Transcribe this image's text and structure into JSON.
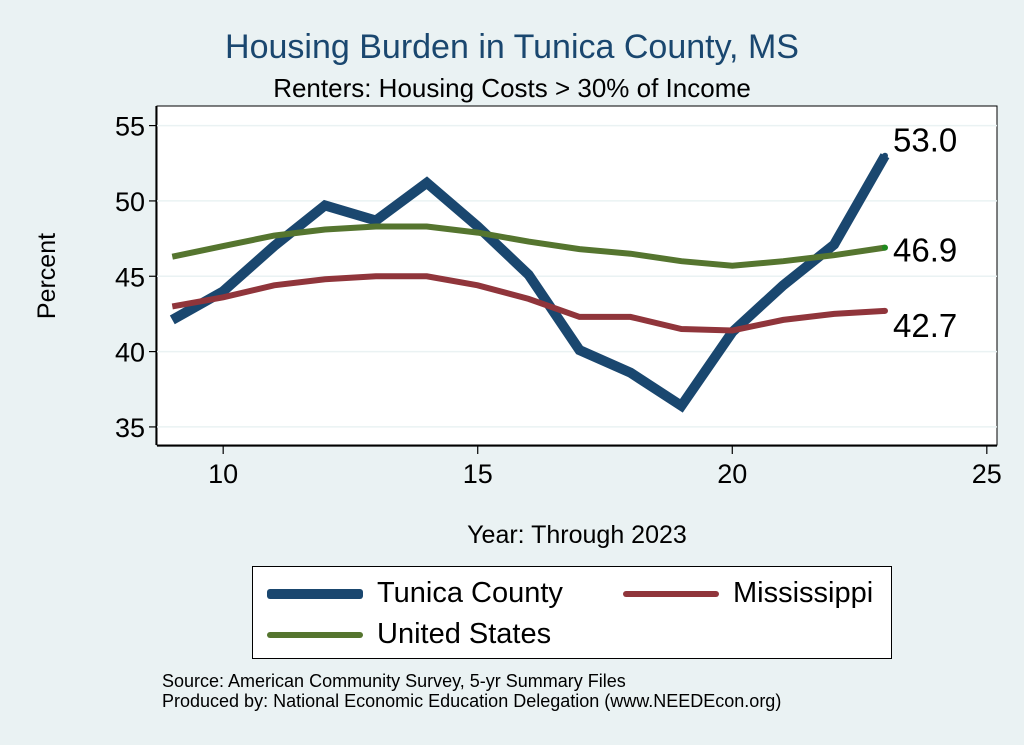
{
  "chart_data": {
    "type": "line",
    "title": "Housing Burden in Tunica County, MS",
    "subtitle": "Renters: Housing Costs > 30% of Income",
    "xlabel": "Year: Through 2023",
    "ylabel": "Percent",
    "xlim": [
      8.7,
      25.2
    ],
    "ylim": [
      33.8,
      56.3
    ],
    "x_ticks": [
      10,
      15,
      20,
      25
    ],
    "y_ticks": [
      35,
      40,
      45,
      50,
      55
    ],
    "grid": true,
    "legend_position": "bottom",
    "x": [
      9,
      10,
      11,
      12,
      13,
      14,
      15,
      16,
      17,
      18,
      19,
      20,
      21,
      22,
      23
    ],
    "series": [
      {
        "name": "Tunica County",
        "color": "#1A476F",
        "values": [
          42.1,
          44.0,
          47.0,
          49.7,
          48.7,
          51.2,
          48.3,
          45.1,
          40.1,
          38.6,
          36.4,
          41.3,
          44.4,
          47.1,
          53.0
        ],
        "end_label": "53.0"
      },
      {
        "name": "Mississippi",
        "color": "#90353B",
        "values": [
          43.0,
          43.6,
          44.4,
          44.8,
          45.0,
          45.0,
          44.4,
          43.5,
          42.3,
          42.3,
          41.5,
          41.4,
          42.1,
          42.5,
          42.7
        ],
        "end_label": "42.7"
      },
      {
        "name": "United States",
        "color": "#55752F",
        "values": [
          46.3,
          47.0,
          47.7,
          48.1,
          48.3,
          48.3,
          47.9,
          47.3,
          46.8,
          46.5,
          46.0,
          45.7,
          46.0,
          46.4,
          46.9
        ],
        "end_label": "46.9"
      }
    ]
  },
  "footer": {
    "source": "Source: American Community Survey, 5-yr Summary Files",
    "produced_by": "Produced by: National Economic Education Delegation (www.NEEDEcon.org)"
  }
}
